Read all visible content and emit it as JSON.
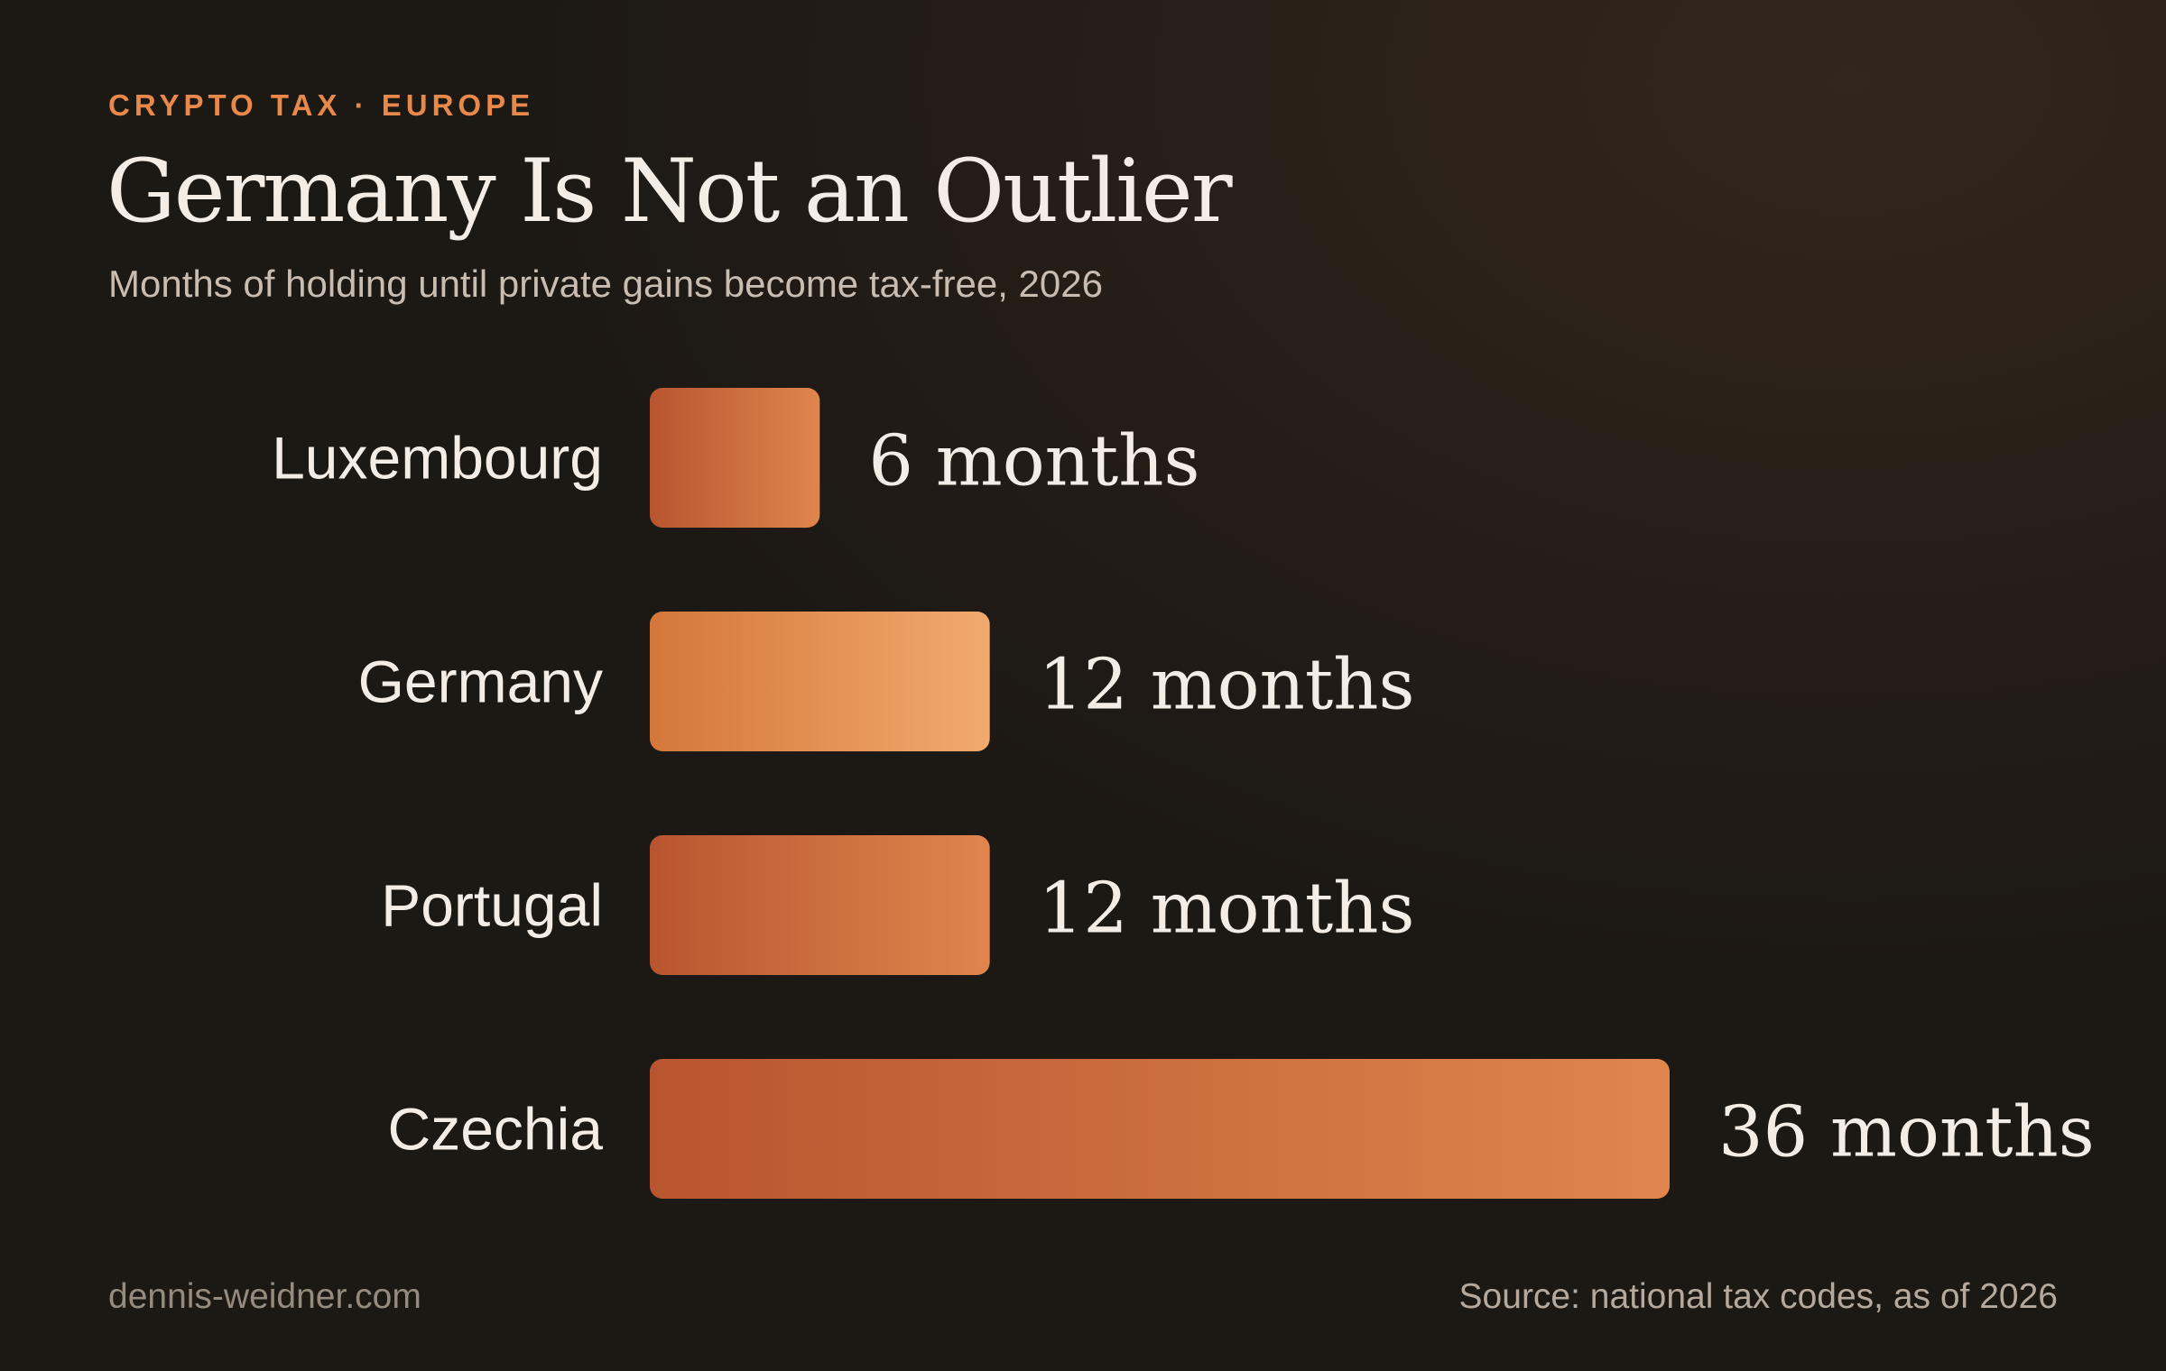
{
  "header": {
    "eyebrow": "CRYPTO TAX · EUROPE",
    "title": "Germany Is Not an Outlier",
    "subtitle": "Months of holding until private gains become tax-free, 2026"
  },
  "footer": {
    "site": "dennis-weidner.com",
    "source": "Source: national tax codes, as of 2026"
  },
  "colors": {
    "accent": "#e8884a",
    "bar_default_start": "#b85530",
    "bar_default_end": "#e0854d",
    "bar_highlight_start": "#d4773a",
    "bar_highlight_end": "#f2aa6e"
  },
  "chart_data": {
    "type": "bar",
    "orientation": "horizontal",
    "categories": [
      "Luxembourg",
      "Germany",
      "Portugal",
      "Czechia"
    ],
    "values": [
      6,
      12,
      12,
      36
    ],
    "value_labels": [
      "6 months",
      "12 months",
      "12 months",
      "36 months"
    ],
    "highlight": "Germany",
    "title": "Germany Is Not an Outlier",
    "subtitle": "Months of holding until private gains become tax-free, 2026",
    "xlim": [
      0,
      36
    ],
    "grid": false,
    "legend": "none"
  }
}
